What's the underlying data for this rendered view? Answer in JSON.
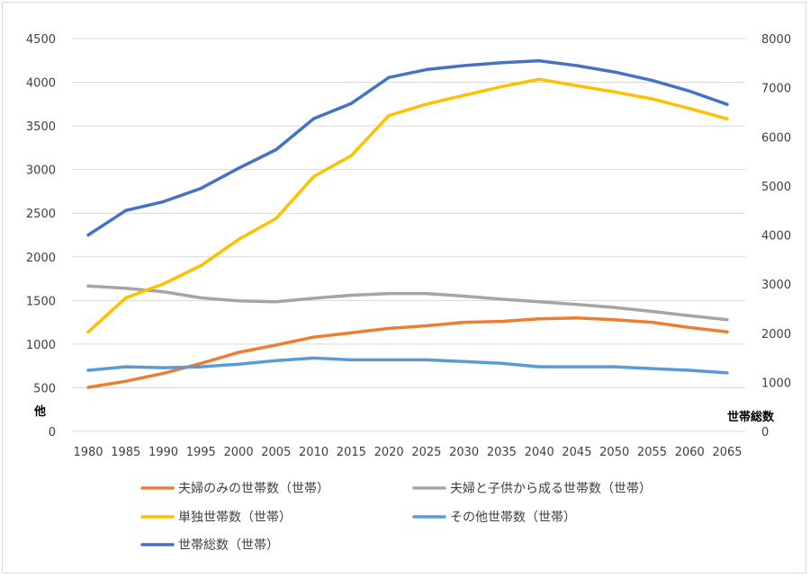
{
  "chart_data": {
    "type": "line",
    "title": "",
    "x": [
      "1980",
      "1985",
      "1990",
      "1995",
      "2000",
      "2005",
      "2010",
      "2015",
      "2020",
      "2025",
      "2030",
      "2035",
      "2040",
      "2045",
      "2050",
      "2055",
      "2060",
      "2065"
    ],
    "y_left": {
      "label": "他",
      "ticks": [
        "0",
        "500",
        "1000",
        "1500",
        "2000",
        "2500",
        "3000",
        "3500",
        "4000",
        "4500"
      ],
      "ylim": [
        0,
        4500
      ]
    },
    "y_right": {
      "label": "世帯総数",
      "ticks": [
        "0",
        "1000",
        "2000",
        "3000",
        "4000",
        "5000",
        "6000",
        "7000",
        "8000"
      ],
      "ylim": [
        0,
        8000
      ]
    },
    "grid": true,
    "legend_position": "bottom",
    "series": [
      {
        "name": "夫婦のみの世帯数（世帯）",
        "axis": "left",
        "color": "#ED7D31",
        "values": [
          505,
          575,
          665,
          780,
          905,
          990,
          1080,
          1130,
          1180,
          1210,
          1250,
          1260,
          1290,
          1300,
          1280,
          1250,
          1190,
          1140
        ]
      },
      {
        "name": "夫婦と子供から成る世帯数（世帯）",
        "axis": "left",
        "color": "#A5A5A5",
        "values": [
          1665,
          1640,
          1600,
          1530,
          1495,
          1485,
          1525,
          1560,
          1580,
          1580,
          1550,
          1515,
          1485,
          1455,
          1420,
          1375,
          1325,
          1280
        ]
      },
      {
        "name": "単独世帯数（世帯）",
        "axis": "left",
        "color": "#FFC000",
        "values": [
          1140,
          1530,
          1690,
          1900,
          2200,
          2440,
          2920,
          3160,
          3620,
          3750,
          3850,
          3950,
          4035,
          3960,
          3890,
          3810,
          3700,
          3580
        ]
      },
      {
        "name": "その他世帯数（世帯）",
        "axis": "left",
        "color": "#5B9BD5",
        "values": [
          700,
          740,
          730,
          740,
          770,
          810,
          840,
          820,
          820,
          820,
          800,
          780,
          740,
          740,
          740,
          720,
          700,
          670
        ]
      },
      {
        "name": "世帯総数（世帯）",
        "axis": "right",
        "color": "#4472C4",
        "values": [
          4000,
          4500,
          4680,
          4950,
          5360,
          5740,
          6370,
          6680,
          7210,
          7370,
          7450,
          7510,
          7550,
          7450,
          7320,
          7150,
          6930,
          6660
        ]
      }
    ]
  }
}
